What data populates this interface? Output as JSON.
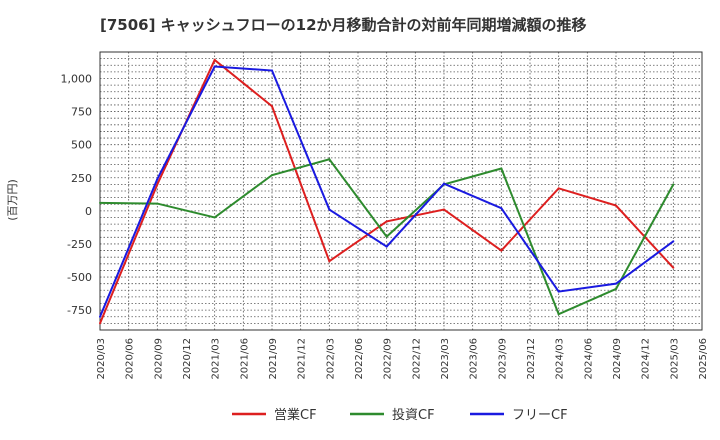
{
  "chart_data": {
    "type": "line",
    "title": "[7506]  キャッシュフローの12か月移動合計の対前年同期増減額の推移",
    "ylabel": "(百万円)",
    "xlabel": "",
    "ylim": [
      -900,
      1200
    ],
    "yticks": [
      -750,
      -500,
      -250,
      0,
      250,
      500,
      750,
      1000
    ],
    "ytick_labels": [
      "-750",
      "-500",
      "-250",
      "0",
      "250",
      "500",
      "750",
      "1,000"
    ],
    "categories": [
      "2020/03",
      "2020/06",
      "2020/09",
      "2020/12",
      "2021/03",
      "2021/06",
      "2021/09",
      "2021/12",
      "2022/03",
      "2022/06",
      "2022/09",
      "2022/12",
      "2023/03",
      "2023/06",
      "2023/09",
      "2023/12",
      "2024/03",
      "2024/06",
      "2024/09",
      "2024/12",
      "2025/03",
      "2025/06"
    ],
    "grid": true,
    "legend_position": "bottom",
    "series": [
      {
        "name": "営業CF",
        "color": "#dd1f1f",
        "values": [
          -850,
          null,
          200,
          null,
          1140,
          null,
          790,
          null,
          -380,
          null,
          -80,
          null,
          10,
          null,
          -300,
          null,
          170,
          null,
          40,
          null,
          -430,
          null
        ]
      },
      {
        "name": "投資CF",
        "color": "#2e8b2e",
        "values": [
          60,
          null,
          55,
          null,
          -50,
          null,
          270,
          null,
          390,
          null,
          -195,
          null,
          200,
          null,
          320,
          null,
          -780,
          null,
          -590,
          null,
          200,
          null
        ]
      },
      {
        "name": "フリーCF",
        "color": "#1a1ae0",
        "values": [
          -800,
          null,
          240,
          null,
          1090,
          null,
          1060,
          null,
          10,
          null,
          -270,
          null,
          205,
          null,
          20,
          null,
          -610,
          null,
          -550,
          null,
          -230,
          null
        ]
      }
    ]
  }
}
